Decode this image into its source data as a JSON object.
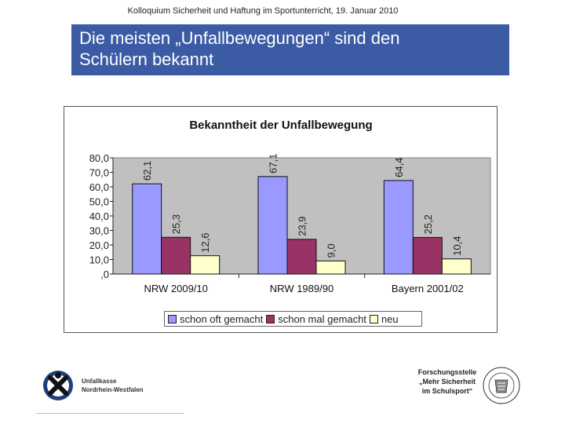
{
  "header": {
    "text": "Kolloquium Sicherheit und Haftung im Sportunterricht, 19. Januar 2010"
  },
  "slide": {
    "title_line1": "Die meisten „Unfallbewegungen“ sind den",
    "title_line2": "Schülern bekannt"
  },
  "chart_data": {
    "type": "bar",
    "title": "Bekanntheit der Unfallbewegung",
    "categories": [
      "NRW 2009/10",
      "NRW 1989/90",
      "Bayern 2001/02"
    ],
    "series": [
      {
        "name": "schon oft gemacht",
        "values": [
          62.1,
          67.1,
          64.4
        ],
        "labels": [
          "62,1",
          "67,1",
          "64,4"
        ],
        "color": "#9999ff"
      },
      {
        "name": "schon mal gemacht",
        "values": [
          25.3,
          23.9,
          25.2
        ],
        "labels": [
          "25,3",
          "23,9",
          "25,2"
        ],
        "color": "#993366"
      },
      {
        "name": "neu",
        "values": [
          12.6,
          9.0,
          10.4
        ],
        "labels": [
          "12,6",
          "9,0",
          "10,4"
        ],
        "color": "#ffffcc"
      }
    ],
    "ylim": [
      0,
      80
    ],
    "yticks": [
      ",0",
      "10,0",
      "20,0",
      "30,0",
      "40,0",
      "50,0",
      "60,0",
      "70,0",
      "80,0"
    ],
    "xlabel": "",
    "ylabel": "",
    "grid": false,
    "legend_position": "bottom"
  },
  "footer": {
    "left_org_line1": "Unfallkasse",
    "left_org_line2": "Nordrhein-Westfalen",
    "right_org_line1": "Forschungsstelle",
    "right_org_line2": "„Mehr Sicherheit",
    "right_org_line3": "im Schulsport“"
  },
  "colors": {
    "title_bg": "#3b5ba5",
    "plot_bg": "#c0c0c0"
  }
}
